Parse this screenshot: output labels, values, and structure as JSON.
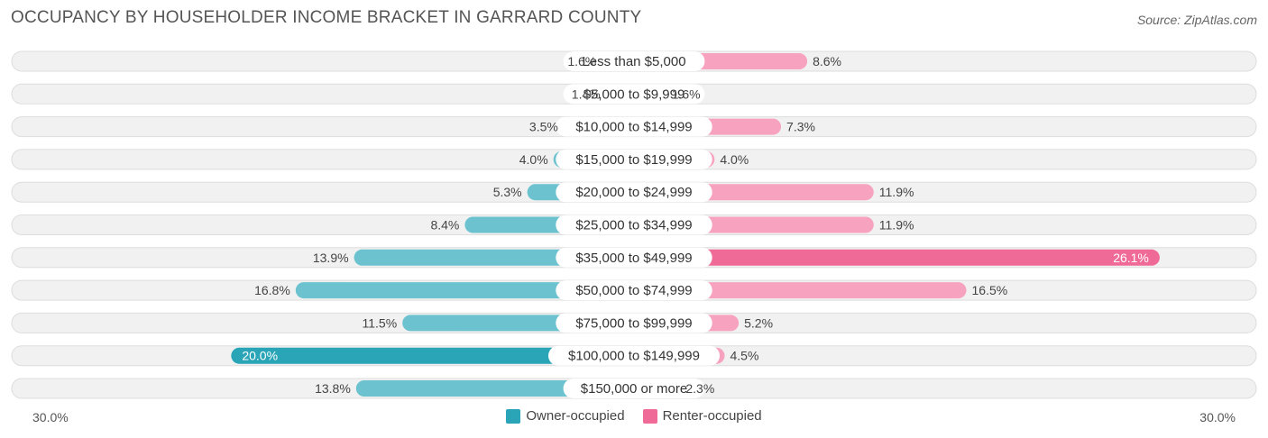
{
  "header": {
    "title": "OCCUPANCY BY HOUSEHOLDER INCOME BRACKET IN GARRARD COUNTY",
    "source": "Source: ZipAtlas.com"
  },
  "axis": {
    "left_label": "30.0%",
    "right_label": "30.0%"
  },
  "legend": {
    "owner_label": "Owner-occupied",
    "renter_label": "Renter-occupied"
  },
  "colors": {
    "owner": "#6cc3cf",
    "owner_strong": "#2aa5b7",
    "renter": "#f7a3bf",
    "renter_strong": "#f06a98"
  },
  "chart_data": {
    "type": "bar",
    "orientation": "horizontal-diverging",
    "title": "OCCUPANCY BY HOUSEHOLDER INCOME BRACKET IN GARRARD COUNTY",
    "categories": [
      "Less than $5,000",
      "$5,000 to $9,999",
      "$10,000 to $14,999",
      "$15,000 to $19,999",
      "$20,000 to $24,999",
      "$25,000 to $34,999",
      "$35,000 to $49,999",
      "$50,000 to $74,999",
      "$75,000 to $99,999",
      "$100,000 to $149,999",
      "$150,000 or more"
    ],
    "series": [
      {
        "name": "Owner-occupied",
        "values": [
          1.6,
          1.4,
          3.5,
          4.0,
          5.3,
          8.4,
          13.9,
          16.8,
          11.5,
          20.0,
          13.8
        ],
        "labels": [
          "1.6%",
          "1.4%",
          "3.5%",
          "4.0%",
          "5.3%",
          "8.4%",
          "13.9%",
          "16.8%",
          "11.5%",
          "20.0%",
          "13.8%"
        ]
      },
      {
        "name": "Renter-occupied",
        "values": [
          8.6,
          1.6,
          7.3,
          4.0,
          11.9,
          11.9,
          26.1,
          16.5,
          5.2,
          4.5,
          2.3
        ],
        "labels": [
          "8.6%",
          "1.6%",
          "7.3%",
          "4.0%",
          "11.9%",
          "11.9%",
          "26.1%",
          "16.5%",
          "5.2%",
          "4.5%",
          "2.3%"
        ]
      }
    ],
    "xlim": [
      -30,
      30
    ],
    "legend_position": "bottom-center"
  }
}
